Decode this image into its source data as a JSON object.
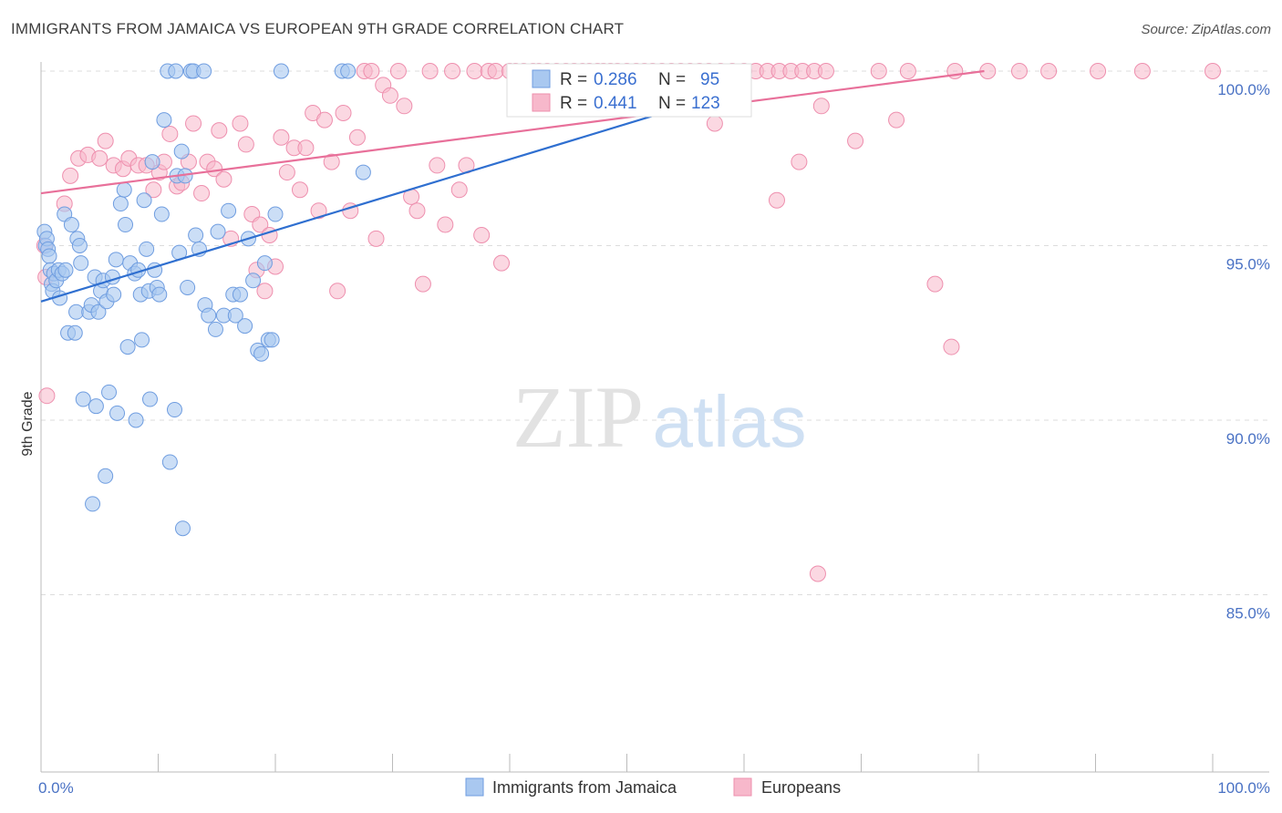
{
  "title": "IMMIGRANTS FROM JAMAICA VS EUROPEAN 9TH GRADE CORRELATION CHART",
  "source": "Source: ZipAtlas.com",
  "watermark": {
    "zip": "ZIP",
    "atlas": "atlas"
  },
  "colors": {
    "blue_fill": "#a9c8f0",
    "blue_stroke": "#6f9de0",
    "blue_line": "#2f6fd0",
    "pink_fill": "#f7b8cb",
    "pink_stroke": "#ee8fae",
    "pink_line": "#e8709a",
    "axis_text": "#4a72c4",
    "grid": "#dcdcdc"
  },
  "legend_top": [
    {
      "r_label": "R =",
      "r_value": "0.286",
      "n_label": "N =",
      "n_value": "95",
      "color": "blue"
    },
    {
      "r_label": "R =",
      "r_value": "0.441",
      "n_label": "N =",
      "n_value": "123",
      "color": "pink"
    }
  ],
  "chart_data": {
    "type": "scatter",
    "title": "IMMIGRANTS FROM JAMAICA VS EUROPEAN 9TH GRADE CORRELATION CHART",
    "xlabel": "",
    "ylabel": "9th Grade",
    "xlim": [
      0,
      100
    ],
    "ylim": [
      80.5,
      100.5
    ],
    "x_tick_labels": [
      "0.0%",
      "100.0%"
    ],
    "y_ticks": [
      85,
      90,
      95,
      100
    ],
    "y_tick_labels": [
      "85.0%",
      "90.0%",
      "95.0%",
      "100.0%"
    ],
    "grid": true,
    "legend_position": "bottom",
    "series": [
      {
        "name": "Immigrants from Jamaica",
        "color": "#a9c8f0",
        "trend": {
          "x": [
            0,
            55
          ],
          "y": [
            93.4,
            99.0
          ]
        },
        "points": [
          [
            0.3,
            95.4
          ],
          [
            0.4,
            95.0
          ],
          [
            0.5,
            95.2
          ],
          [
            0.6,
            94.9
          ],
          [
            0.7,
            94.7
          ],
          [
            0.8,
            94.3
          ],
          [
            0.9,
            93.9
          ],
          [
            1.0,
            93.7
          ],
          [
            1.1,
            94.2
          ],
          [
            1.3,
            94.0
          ],
          [
            1.5,
            94.3
          ],
          [
            1.6,
            93.5
          ],
          [
            1.8,
            94.2
          ],
          [
            2.0,
            95.9
          ],
          [
            2.1,
            94.3
          ],
          [
            2.3,
            92.5
          ],
          [
            2.6,
            95.6
          ],
          [
            2.9,
            92.5
          ],
          [
            3.0,
            93.1
          ],
          [
            3.1,
            95.2
          ],
          [
            3.3,
            95.0
          ],
          [
            3.4,
            94.5
          ],
          [
            3.6,
            90.6
          ],
          [
            4.1,
            93.1
          ],
          [
            4.3,
            93.3
          ],
          [
            4.4,
            87.6
          ],
          [
            4.6,
            94.1
          ],
          [
            4.7,
            90.4
          ],
          [
            4.9,
            93.1
          ],
          [
            5.1,
            93.7
          ],
          [
            5.3,
            94.0
          ],
          [
            5.5,
            88.4
          ],
          [
            5.6,
            93.4
          ],
          [
            5.8,
            90.8
          ],
          [
            6.1,
            94.1
          ],
          [
            6.2,
            93.6
          ],
          [
            6.4,
            94.6
          ],
          [
            6.5,
            90.2
          ],
          [
            6.8,
            96.2
          ],
          [
            7.1,
            96.6
          ],
          [
            7.2,
            95.6
          ],
          [
            7.4,
            92.1
          ],
          [
            7.6,
            94.5
          ],
          [
            8.0,
            94.2
          ],
          [
            8.1,
            90.0
          ],
          [
            8.3,
            94.3
          ],
          [
            8.5,
            93.6
          ],
          [
            8.6,
            92.3
          ],
          [
            8.8,
            96.3
          ],
          [
            9.0,
            94.9
          ],
          [
            9.2,
            93.7
          ],
          [
            9.3,
            90.6
          ],
          [
            9.5,
            97.4
          ],
          [
            9.7,
            94.3
          ],
          [
            9.9,
            93.8
          ],
          [
            10.1,
            93.6
          ],
          [
            10.3,
            95.9
          ],
          [
            10.5,
            98.6
          ],
          [
            10.8,
            100.0
          ],
          [
            11.0,
            88.8
          ],
          [
            11.4,
            90.3
          ],
          [
            11.6,
            97.0
          ],
          [
            11.8,
            94.8
          ],
          [
            12.0,
            97.7
          ],
          [
            12.1,
            86.9
          ],
          [
            12.3,
            97.0
          ],
          [
            12.5,
            93.8
          ],
          [
            12.8,
            100.0
          ],
          [
            13.0,
            100.0
          ],
          [
            13.2,
            95.3
          ],
          [
            13.5,
            94.9
          ],
          [
            14.0,
            93.3
          ],
          [
            14.3,
            93.0
          ],
          [
            14.9,
            92.6
          ],
          [
            15.1,
            95.4
          ],
          [
            15.6,
            93.0
          ],
          [
            16.0,
            96.0
          ],
          [
            16.4,
            93.6
          ],
          [
            16.6,
            93.0
          ],
          [
            17.0,
            93.6
          ],
          [
            17.4,
            92.7
          ],
          [
            17.7,
            95.2
          ],
          [
            18.1,
            94.0
          ],
          [
            18.5,
            92.0
          ],
          [
            18.8,
            91.9
          ],
          [
            19.1,
            94.5
          ],
          [
            19.4,
            92.3
          ],
          [
            19.7,
            92.3
          ],
          [
            20.0,
            95.9
          ],
          [
            20.5,
            100.0
          ],
          [
            25.7,
            100.0
          ],
          [
            26.2,
            100.0
          ],
          [
            27.5,
            97.1
          ],
          [
            13.9,
            100.0
          ],
          [
            11.5,
            100.0
          ]
        ]
      },
      {
        "name": "Europeans",
        "color": "#f7b8cb",
        "trend": {
          "x": [
            0,
            80.5
          ],
          "y": [
            96.5,
            100.0
          ]
        },
        "points": [
          [
            0.3,
            95.0
          ],
          [
            0.4,
            94.1
          ],
          [
            0.5,
            90.7
          ],
          [
            2.0,
            96.2
          ],
          [
            2.5,
            97.0
          ],
          [
            3.2,
            97.5
          ],
          [
            4.0,
            97.6
          ],
          [
            5.0,
            97.5
          ],
          [
            5.5,
            98.0
          ],
          [
            6.2,
            97.3
          ],
          [
            7.0,
            97.2
          ],
          [
            7.5,
            97.5
          ],
          [
            8.3,
            97.3
          ],
          [
            9.0,
            97.3
          ],
          [
            9.6,
            96.6
          ],
          [
            10.1,
            97.1
          ],
          [
            10.5,
            97.4
          ],
          [
            11.0,
            98.2
          ],
          [
            11.6,
            96.7
          ],
          [
            12.0,
            96.8
          ],
          [
            12.6,
            97.4
          ],
          [
            13.0,
            98.5
          ],
          [
            13.7,
            96.5
          ],
          [
            14.2,
            97.4
          ],
          [
            14.8,
            97.2
          ],
          [
            15.2,
            98.3
          ],
          [
            15.6,
            96.9
          ],
          [
            16.2,
            95.2
          ],
          [
            17.0,
            98.5
          ],
          [
            17.5,
            97.9
          ],
          [
            18.0,
            95.9
          ],
          [
            18.4,
            94.3
          ],
          [
            18.7,
            95.6
          ],
          [
            19.1,
            93.7
          ],
          [
            19.5,
            95.3
          ],
          [
            20.0,
            94.4
          ],
          [
            20.5,
            98.1
          ],
          [
            21.0,
            97.1
          ],
          [
            21.6,
            97.8
          ],
          [
            22.1,
            96.6
          ],
          [
            22.6,
            97.8
          ],
          [
            23.2,
            98.8
          ],
          [
            23.7,
            96.0
          ],
          [
            24.2,
            98.6
          ],
          [
            24.8,
            97.4
          ],
          [
            25.3,
            93.7
          ],
          [
            25.8,
            98.8
          ],
          [
            26.4,
            96.0
          ],
          [
            27.0,
            98.1
          ],
          [
            27.6,
            100.0
          ],
          [
            28.2,
            100.0
          ],
          [
            28.6,
            95.2
          ],
          [
            29.2,
            99.6
          ],
          [
            29.8,
            99.3
          ],
          [
            30.5,
            100.0
          ],
          [
            31.0,
            99.0
          ],
          [
            31.6,
            96.4
          ],
          [
            32.1,
            96.0
          ],
          [
            32.6,
            93.9
          ],
          [
            33.2,
            100.0
          ],
          [
            33.8,
            97.3
          ],
          [
            34.5,
            95.6
          ],
          [
            35.1,
            100.0
          ],
          [
            35.7,
            96.6
          ],
          [
            36.3,
            97.3
          ],
          [
            37.0,
            100.0
          ],
          [
            37.6,
            95.3
          ],
          [
            38.2,
            100.0
          ],
          [
            38.8,
            100.0
          ],
          [
            39.3,
            94.5
          ],
          [
            40.0,
            100.0
          ],
          [
            40.5,
            100.0
          ],
          [
            41.2,
            100.0
          ],
          [
            42.0,
            100.0
          ],
          [
            42.5,
            100.0
          ],
          [
            43.2,
            100.0
          ],
          [
            44.0,
            100.0
          ],
          [
            44.8,
            100.0
          ],
          [
            45.5,
            100.0
          ],
          [
            46.2,
            100.0
          ],
          [
            46.8,
            100.0
          ],
          [
            47.5,
            100.0
          ],
          [
            48.0,
            100.0
          ],
          [
            48.6,
            100.0
          ],
          [
            49.2,
            100.0
          ],
          [
            50.0,
            100.0
          ],
          [
            50.8,
            100.0
          ],
          [
            51.5,
            100.0
          ],
          [
            52.2,
            100.0
          ],
          [
            53.0,
            100.0
          ],
          [
            53.8,
            100.0
          ],
          [
            54.6,
            100.0
          ],
          [
            55.4,
            100.0
          ],
          [
            56.2,
            100.0
          ],
          [
            57.0,
            100.0
          ],
          [
            58.0,
            100.0
          ],
          [
            59.0,
            100.0
          ],
          [
            60.0,
            100.0
          ],
          [
            61.0,
            100.0
          ],
          [
            62.0,
            100.0
          ],
          [
            63.0,
            100.0
          ],
          [
            64.0,
            100.0
          ],
          [
            65.0,
            100.0
          ],
          [
            66.0,
            100.0
          ],
          [
            67.0,
            100.0
          ],
          [
            57.5,
            98.5
          ],
          [
            62.8,
            96.3
          ],
          [
            64.7,
            97.4
          ],
          [
            66.6,
            99.0
          ],
          [
            69.5,
            98.0
          ],
          [
            73.0,
            98.6
          ],
          [
            76.3,
            93.9
          ],
          [
            77.7,
            92.1
          ],
          [
            66.3,
            85.6
          ],
          [
            71.5,
            100.0
          ],
          [
            74.0,
            100.0
          ],
          [
            78.0,
            100.0
          ],
          [
            80.8,
            100.0
          ],
          [
            83.5,
            100.0
          ],
          [
            86.0,
            100.0
          ],
          [
            90.2,
            100.0
          ],
          [
            94.0,
            100.0
          ],
          [
            100.0,
            100.0
          ]
        ]
      }
    ]
  },
  "legend_bottom": [
    {
      "label": "Immigrants from Jamaica",
      "color": "blue"
    },
    {
      "label": "Europeans",
      "color": "pink"
    }
  ]
}
